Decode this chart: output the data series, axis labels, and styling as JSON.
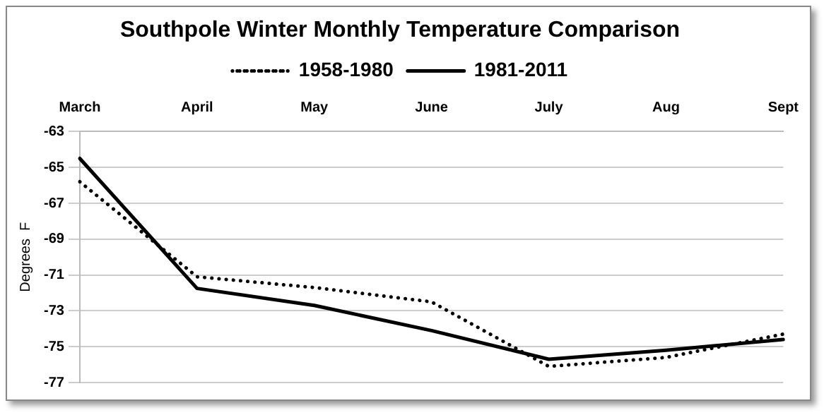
{
  "chart_data": {
    "type": "line",
    "title": "Southpole Winter Monthly Temperature Comparison",
    "ylabel": "Degrees  F",
    "categories": [
      "March",
      "April",
      "May",
      "June",
      "July",
      "Aug",
      "Sept"
    ],
    "series": [
      {
        "name": "1958-1980",
        "color": "#000000",
        "line_style": "dotted",
        "values": [
          -65.8,
          -71.1,
          -71.7,
          -72.5,
          -76.1,
          -75.6,
          -74.3
        ]
      },
      {
        "name": "1981-2011",
        "color": "#000000",
        "line_style": "solid",
        "values": [
          -64.5,
          -71.75,
          -72.7,
          -74.1,
          -75.7,
          -75.2,
          -74.6
        ]
      }
    ],
    "ylim": [
      -77,
      -63
    ],
    "yticks": [
      -77,
      -75,
      -73,
      -71,
      -69,
      -67,
      -65,
      -63
    ],
    "grid": "y",
    "legend": "top",
    "marker": "none"
  }
}
